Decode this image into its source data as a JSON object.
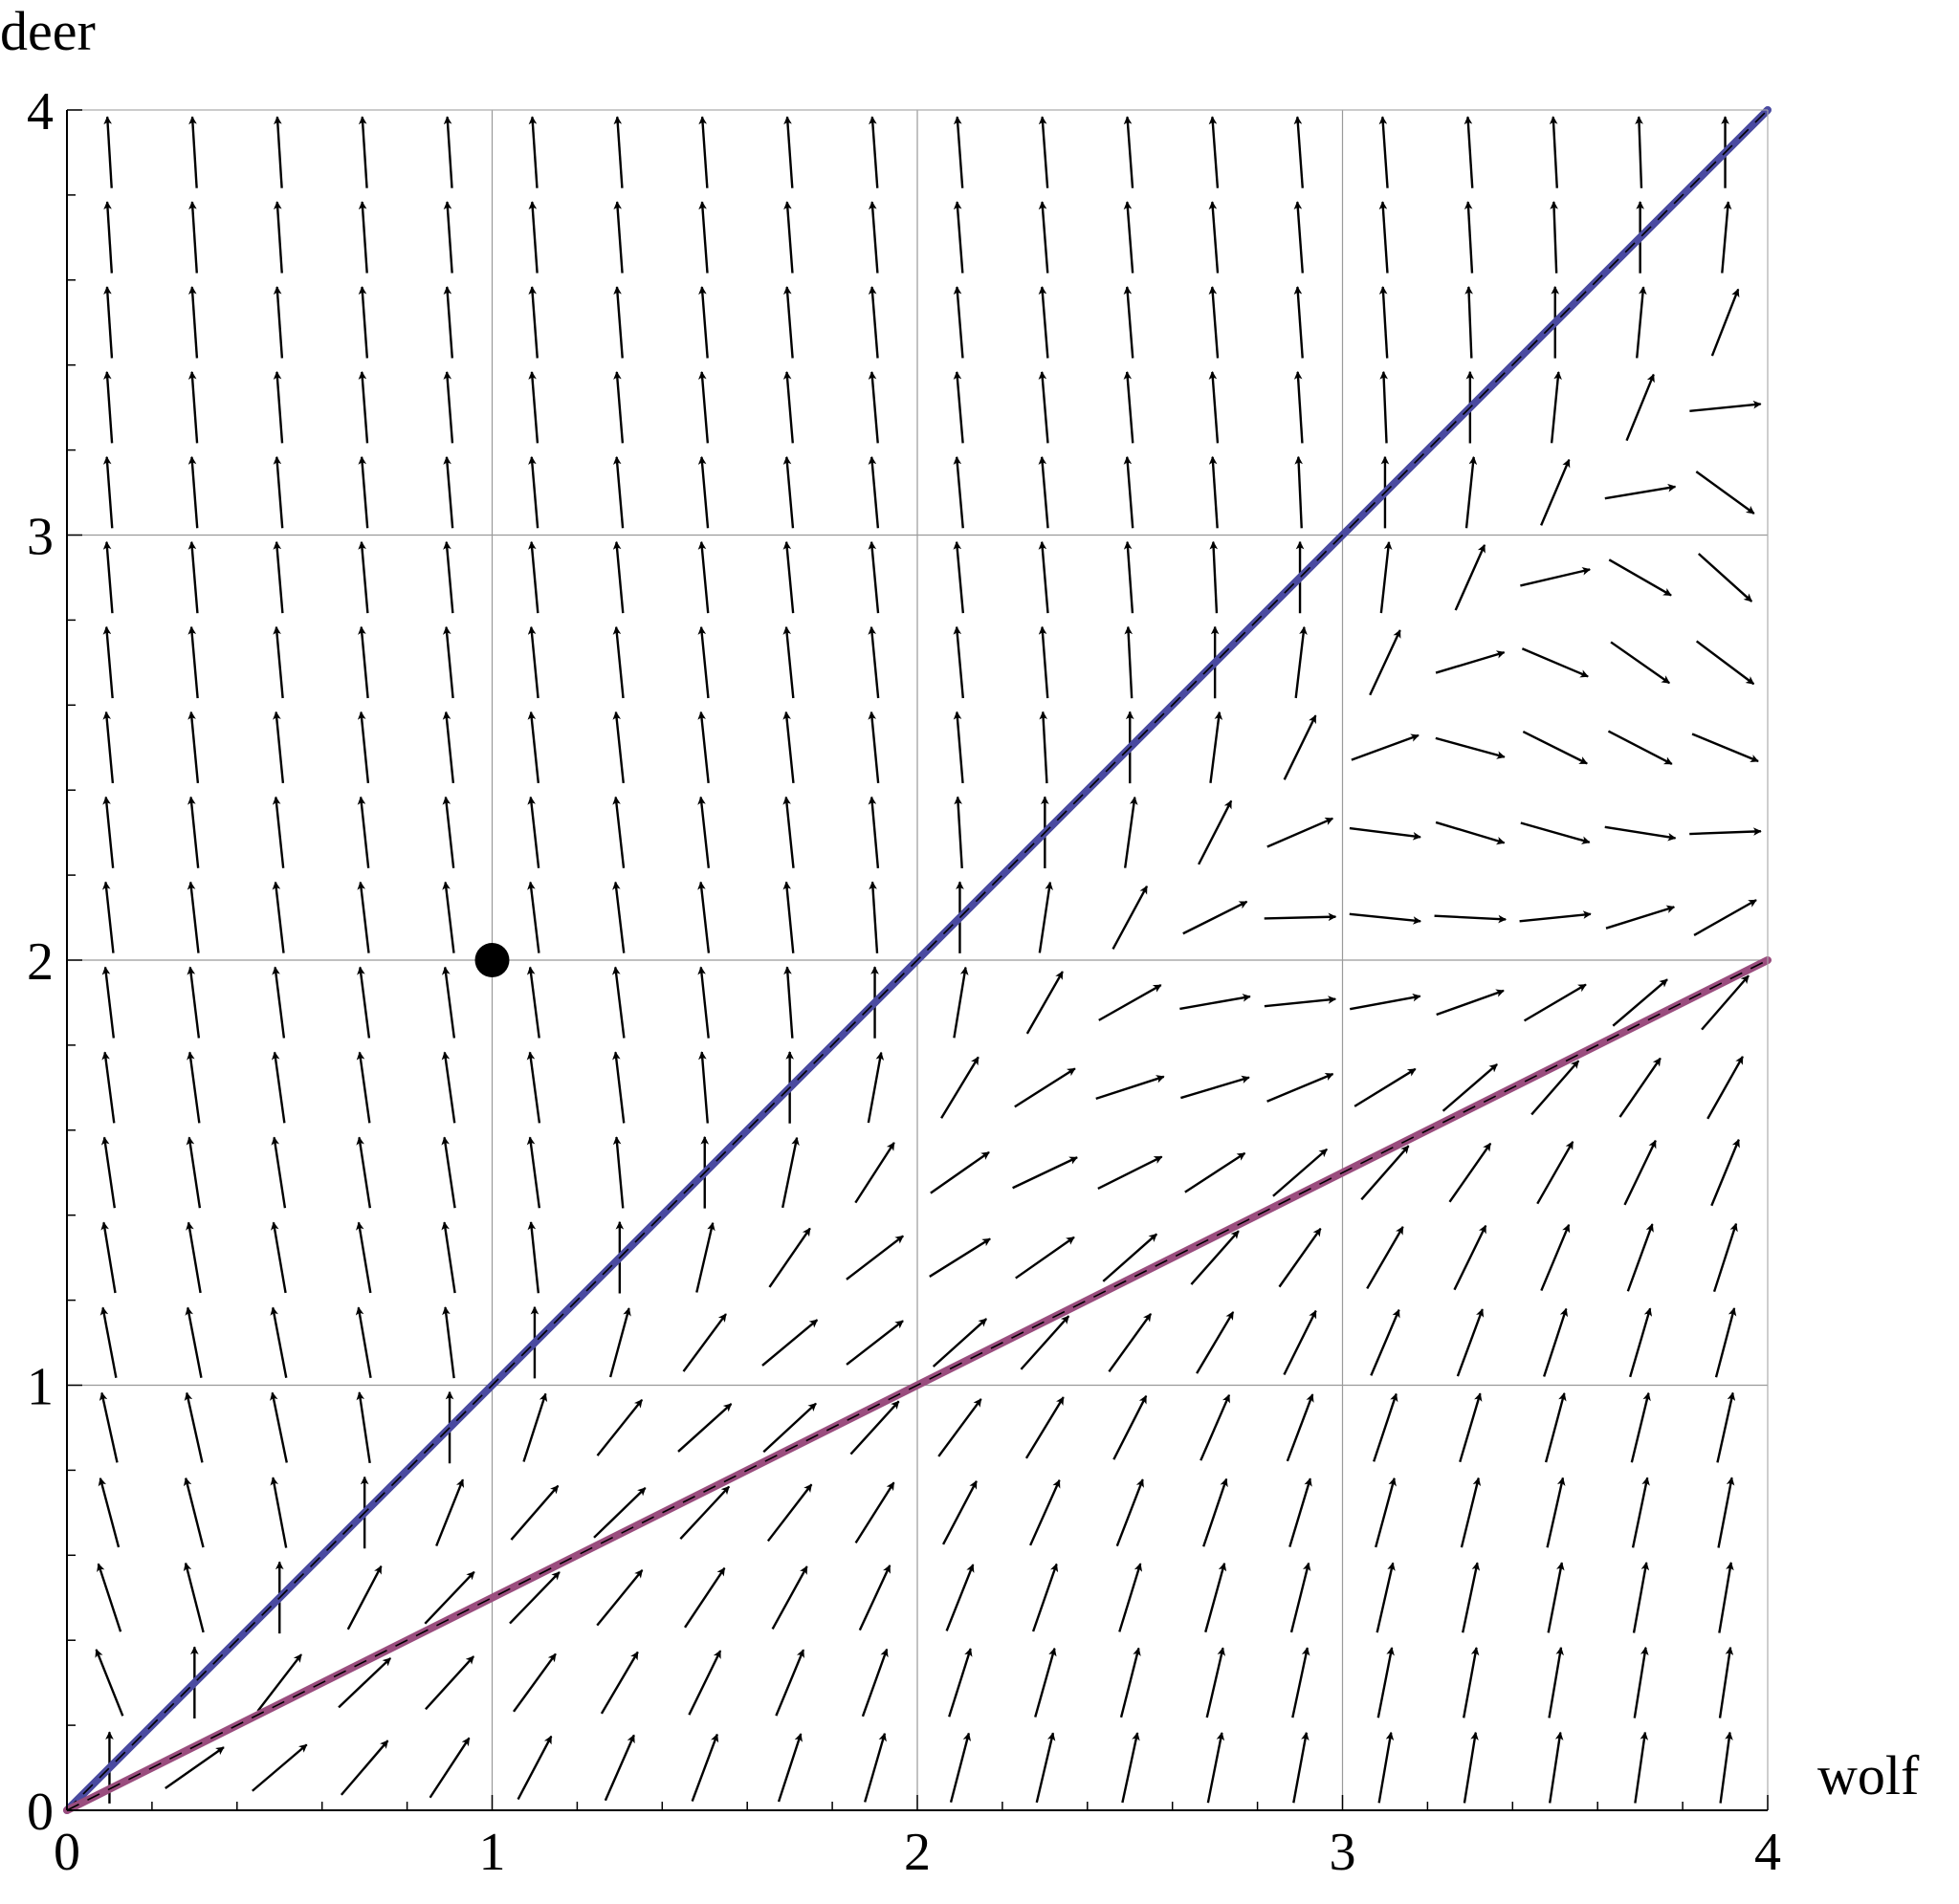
{
  "chart_data": {
    "type": "vector-field",
    "xlabel": "wolf",
    "ylabel": "deer",
    "xlim": [
      0,
      4
    ],
    "ylim": [
      0,
      4
    ],
    "xticks": [
      0,
      1,
      2,
      3,
      4
    ],
    "yticks": [
      0,
      1,
      2,
      3,
      4
    ],
    "x_tick_labels": [
      "0",
      "1",
      "2",
      "3",
      "4"
    ],
    "y_tick_labels": [
      "0",
      "1",
      "2",
      "3",
      "4"
    ],
    "grid": true,
    "field_samples": 20,
    "field": {
      "dx": "x - y",
      "dy": "y - 2*(x - y)*(2*y - x)",
      "description_source": "arrow directions sampled on a 20 x 20 grid over [0,4] x [0,4]"
    },
    "lines": [
      {
        "points": [
          [
            0,
            0
          ],
          [
            4,
            4
          ]
        ],
        "color": "#4a4aa0"
      },
      {
        "points": [
          [
            0,
            0
          ],
          [
            4,
            2
          ]
        ],
        "color": "#9a4d7e"
      }
    ],
    "point": {
      "x": 1,
      "y": 2,
      "color": "#000000"
    }
  }
}
